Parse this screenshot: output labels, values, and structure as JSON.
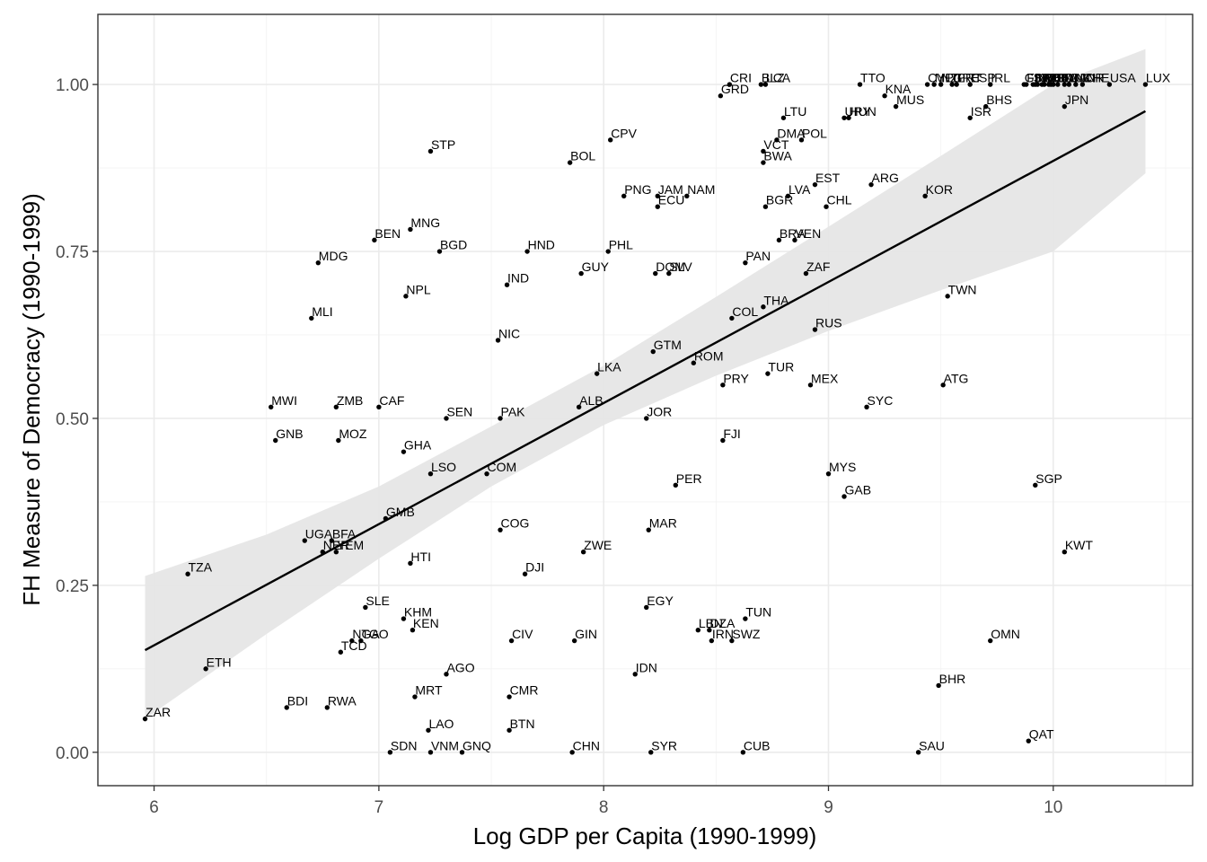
{
  "chart_data": {
    "type": "scatter",
    "xlabel": "Log GDP per Capita (1990-1999)",
    "ylabel": "FH Measure of Democracy (1990-1999)",
    "xlim": [
      5.75,
      10.62
    ],
    "ylim": [
      -0.05,
      1.105
    ],
    "x_ticks": [
      6,
      7,
      8,
      9,
      10
    ],
    "y_ticks": [
      0.0,
      0.25,
      0.5,
      0.75,
      1.0
    ],
    "x_tick_labels": [
      "6",
      "7",
      "8",
      "9",
      "10"
    ],
    "y_tick_labels": [
      "0.00",
      "0.25",
      "0.50",
      "0.75",
      "1.00"
    ],
    "grid": true,
    "point_color": "#000000",
    "panel_border_color": "#333333",
    "fit": {
      "method": "linear",
      "x": [
        5.96,
        10.41
      ],
      "y": [
        0.153,
        0.96
      ],
      "ribbon_x": [
        5.96,
        6.5,
        7.0,
        7.5,
        8.0,
        8.5,
        9.0,
        9.5,
        10.0,
        10.41
      ],
      "ribbon_lower": [
        0.05,
        0.177,
        0.29,
        0.398,
        0.49,
        0.564,
        0.631,
        0.692,
        0.75,
        0.867
      ],
      "ribbon_upper": [
        0.264,
        0.326,
        0.398,
        0.488,
        0.579,
        0.682,
        0.787,
        0.893,
        1.0,
        1.053
      ],
      "line_color": "#000000",
      "ribbon_color": "#e6e6e6"
    },
    "points": [
      {
        "label": "ZAR",
        "x": 5.96,
        "y": 0.05
      },
      {
        "label": "TZA",
        "x": 6.15,
        "y": 0.267
      },
      {
        "label": "ETH",
        "x": 6.23,
        "y": 0.125
      },
      {
        "label": "MWI",
        "x": 6.52,
        "y": 0.517
      },
      {
        "label": "GNB",
        "x": 6.54,
        "y": 0.467
      },
      {
        "label": "BDI",
        "x": 6.59,
        "y": 0.067
      },
      {
        "label": "UGA",
        "x": 6.67,
        "y": 0.317
      },
      {
        "label": "MLI",
        "x": 6.7,
        "y": 0.65
      },
      {
        "label": "MDG",
        "x": 6.73,
        "y": 0.733
      },
      {
        "label": "NER",
        "x": 6.75,
        "y": 0.3
      },
      {
        "label": "RWA",
        "x": 6.77,
        "y": 0.067
      },
      {
        "label": "BFA",
        "x": 6.79,
        "y": 0.317
      },
      {
        "label": "ZMB",
        "x": 6.81,
        "y": 0.517
      },
      {
        "label": "YEM",
        "x": 6.81,
        "y": 0.3
      },
      {
        "label": "MOZ",
        "x": 6.82,
        "y": 0.467
      },
      {
        "label": "TCD",
        "x": 6.83,
        "y": 0.15
      },
      {
        "label": "NGA",
        "x": 6.88,
        "y": 0.167
      },
      {
        "label": "TGO",
        "x": 6.92,
        "y": 0.167
      },
      {
        "label": "SLE",
        "x": 6.94,
        "y": 0.217
      },
      {
        "label": "BEN",
        "x": 6.98,
        "y": 0.767
      },
      {
        "label": "CAF",
        "x": 7.0,
        "y": 0.517
      },
      {
        "label": "GMB",
        "x": 7.03,
        "y": 0.35
      },
      {
        "label": "SDN",
        "x": 7.05,
        "y": 0.0
      },
      {
        "label": "KHM",
        "x": 7.11,
        "y": 0.2
      },
      {
        "label": "GHA",
        "x": 7.11,
        "y": 0.45
      },
      {
        "label": "NPL",
        "x": 7.12,
        "y": 0.683
      },
      {
        "label": "MNG",
        "x": 7.14,
        "y": 0.783
      },
      {
        "label": "HTI",
        "x": 7.14,
        "y": 0.283
      },
      {
        "label": "KEN",
        "x": 7.15,
        "y": 0.183
      },
      {
        "label": "MRT",
        "x": 7.16,
        "y": 0.083
      },
      {
        "label": "LAO",
        "x": 7.22,
        "y": 0.033
      },
      {
        "label": "STP",
        "x": 7.23,
        "y": 0.9
      },
      {
        "label": "LSO",
        "x": 7.23,
        "y": 0.417
      },
      {
        "label": "VNM",
        "x": 7.23,
        "y": 0.0
      },
      {
        "label": "BGD",
        "x": 7.27,
        "y": 0.75
      },
      {
        "label": "SEN",
        "x": 7.3,
        "y": 0.5
      },
      {
        "label": "AGO",
        "x": 7.3,
        "y": 0.117
      },
      {
        "label": "GNQ",
        "x": 7.37,
        "y": 0.0
      },
      {
        "label": "COM",
        "x": 7.48,
        "y": 0.417
      },
      {
        "label": "NIC",
        "x": 7.53,
        "y": 0.617
      },
      {
        "label": "PAK",
        "x": 7.54,
        "y": 0.5
      },
      {
        "label": "COG",
        "x": 7.54,
        "y": 0.333
      },
      {
        "label": "IND",
        "x": 7.57,
        "y": 0.7
      },
      {
        "label": "CMR",
        "x": 7.58,
        "y": 0.083
      },
      {
        "label": "BTN",
        "x": 7.58,
        "y": 0.033
      },
      {
        "label": "CIV",
        "x": 7.59,
        "y": 0.167
      },
      {
        "label": "DJI",
        "x": 7.65,
        "y": 0.267
      },
      {
        "label": "HND",
        "x": 7.66,
        "y": 0.75
      },
      {
        "label": "BOL",
        "x": 7.85,
        "y": 0.883
      },
      {
        "label": "CHN",
        "x": 7.86,
        "y": 0.0
      },
      {
        "label": "GIN",
        "x": 7.87,
        "y": 0.167
      },
      {
        "label": "ALB",
        "x": 7.89,
        "y": 0.517
      },
      {
        "label": "GUY",
        "x": 7.9,
        "y": 0.717
      },
      {
        "label": "ZWE",
        "x": 7.91,
        "y": 0.3
      },
      {
        "label": "LKA",
        "x": 7.97,
        "y": 0.567
      },
      {
        "label": "PHL",
        "x": 8.02,
        "y": 0.75
      },
      {
        "label": "CPV",
        "x": 8.03,
        "y": 0.917
      },
      {
        "label": "PNG",
        "x": 8.09,
        "y": 0.833
      },
      {
        "label": "IDN",
        "x": 8.14,
        "y": 0.117
      },
      {
        "label": "EGY",
        "x": 8.19,
        "y": 0.217
      },
      {
        "label": "JOR",
        "x": 8.19,
        "y": 0.5
      },
      {
        "label": "MAR",
        "x": 8.2,
        "y": 0.333
      },
      {
        "label": "SYR",
        "x": 8.21,
        "y": 0.0
      },
      {
        "label": "GTM",
        "x": 8.22,
        "y": 0.6
      },
      {
        "label": "DOM",
        "x": 8.23,
        "y": 0.717
      },
      {
        "label": "JAM",
        "x": 8.24,
        "y": 0.833
      },
      {
        "label": "ECU",
        "x": 8.24,
        "y": 0.817
      },
      {
        "label": "SLV",
        "x": 8.29,
        "y": 0.717
      },
      {
        "label": "PER",
        "x": 8.32,
        "y": 0.4
      },
      {
        "label": "NAM",
        "x": 8.37,
        "y": 0.833
      },
      {
        "label": "ROM",
        "x": 8.4,
        "y": 0.583
      },
      {
        "label": "LBN",
        "x": 8.42,
        "y": 0.183
      },
      {
        "label": "DZA",
        "x": 8.47,
        "y": 0.183
      },
      {
        "label": "IRN",
        "x": 8.48,
        "y": 0.167
      },
      {
        "label": "GRD",
        "x": 8.52,
        "y": 0.983
      },
      {
        "label": "PRY",
        "x": 8.53,
        "y": 0.55
      },
      {
        "label": "FJI",
        "x": 8.53,
        "y": 0.467
      },
      {
        "label": "CRI",
        "x": 8.56,
        "y": 1.0
      },
      {
        "label": "COL",
        "x": 8.57,
        "y": 0.65
      },
      {
        "label": "SWZ",
        "x": 8.57,
        "y": 0.167
      },
      {
        "label": "CUB",
        "x": 8.62,
        "y": 0.0
      },
      {
        "label": "TUN",
        "x": 8.63,
        "y": 0.2
      },
      {
        "label": "PAN",
        "x": 8.63,
        "y": 0.733
      },
      {
        "label": "BLZ",
        "x": 8.7,
        "y": 1.0
      },
      {
        "label": "LCA",
        "x": 8.72,
        "y": 1.0
      },
      {
        "label": "VCT",
        "x": 8.71,
        "y": 0.9
      },
      {
        "label": "BWA",
        "x": 8.71,
        "y": 0.883
      },
      {
        "label": "THA",
        "x": 8.71,
        "y": 0.667
      },
      {
        "label": "BGR",
        "x": 8.72,
        "y": 0.817
      },
      {
        "label": "TUR",
        "x": 8.73,
        "y": 0.567
      },
      {
        "label": "DMA",
        "x": 8.77,
        "y": 0.917
      },
      {
        "label": "BRA",
        "x": 8.78,
        "y": 0.767
      },
      {
        "label": "LTU",
        "x": 8.8,
        "y": 0.95
      },
      {
        "label": "LVA",
        "x": 8.82,
        "y": 0.833
      },
      {
        "label": "VEN",
        "x": 8.85,
        "y": 0.767
      },
      {
        "label": "POL",
        "x": 8.88,
        "y": 0.917
      },
      {
        "label": "ZAF",
        "x": 8.9,
        "y": 0.717
      },
      {
        "label": "MEX",
        "x": 8.92,
        "y": 0.55
      },
      {
        "label": "EST",
        "x": 8.94,
        "y": 0.85
      },
      {
        "label": "RUS",
        "x": 8.94,
        "y": 0.633
      },
      {
        "label": "CHL",
        "x": 8.99,
        "y": 0.817
      },
      {
        "label": "MYS",
        "x": 9.0,
        "y": 0.417
      },
      {
        "label": "GAB",
        "x": 9.07,
        "y": 0.383
      },
      {
        "label": "URY",
        "x": 9.07,
        "y": 0.95
      },
      {
        "label": "HUN",
        "x": 9.09,
        "y": 0.95
      },
      {
        "label": "TTO",
        "x": 9.14,
        "y": 1.0
      },
      {
        "label": "SYC",
        "x": 9.17,
        "y": 0.517
      },
      {
        "label": "ARG",
        "x": 9.19,
        "y": 0.85
      },
      {
        "label": "KNA",
        "x": 9.25,
        "y": 0.983
      },
      {
        "label": "MUS",
        "x": 9.3,
        "y": 0.967
      },
      {
        "label": "SAU",
        "x": 9.4,
        "y": 0.0
      },
      {
        "label": "KOR",
        "x": 9.43,
        "y": 0.833
      },
      {
        "label": "CYP",
        "x": 9.44,
        "y": 1.0
      },
      {
        "label": "MLT",
        "x": 9.47,
        "y": 1.0
      },
      {
        "label": "BHR",
        "x": 9.49,
        "y": 0.1
      },
      {
        "label": "NZL",
        "x": 9.5,
        "y": 1.0
      },
      {
        "label": "ATG",
        "x": 9.51,
        "y": 0.55
      },
      {
        "label": "TWN",
        "x": 9.53,
        "y": 0.683
      },
      {
        "label": "GRC",
        "x": 9.55,
        "y": 1.0
      },
      {
        "label": "PRT",
        "x": 9.57,
        "y": 1.0
      },
      {
        "label": "ESP",
        "x": 9.63,
        "y": 1.0
      },
      {
        "label": "ISR",
        "x": 9.63,
        "y": 0.95
      },
      {
        "label": "BHS",
        "x": 9.7,
        "y": 0.967
      },
      {
        "label": "OMN",
        "x": 9.72,
        "y": 0.167
      },
      {
        "label": "IRL",
        "x": 9.72,
        "y": 1.0
      },
      {
        "label": "GBR",
        "x": 9.87,
        "y": 1.0
      },
      {
        "label": "FIN",
        "x": 9.88,
        "y": 1.0
      },
      {
        "label": "QAT",
        "x": 9.89,
        "y": 0.017
      },
      {
        "label": "SWE",
        "x": 9.91,
        "y": 1.0
      },
      {
        "label": "NLD",
        "x": 9.92,
        "y": 1.0
      },
      {
        "label": "SGP",
        "x": 9.92,
        "y": 0.4
      },
      {
        "label": "AUS",
        "x": 9.93,
        "y": 1.0
      },
      {
        "label": "AUT",
        "x": 9.95,
        "y": 1.0
      },
      {
        "label": "BEL",
        "x": 9.96,
        "y": 1.0
      },
      {
        "label": "FRA",
        "x": 9.98,
        "y": 1.0
      },
      {
        "label": "DEU",
        "x": 9.99,
        "y": 1.0
      },
      {
        "label": "ISL",
        "x": 10.0,
        "y": 1.0
      },
      {
        "label": "ITA",
        "x": 10.02,
        "y": 1.0
      },
      {
        "label": "JPN",
        "x": 10.05,
        "y": 0.967
      },
      {
        "label": "KWT",
        "x": 10.05,
        "y": 0.3
      },
      {
        "label": "DNK",
        "x": 10.05,
        "y": 1.0
      },
      {
        "label": "CAN",
        "x": 10.07,
        "y": 1.0
      },
      {
        "label": "NOR",
        "x": 10.1,
        "y": 1.0
      },
      {
        "label": "CHE",
        "x": 10.13,
        "y": 1.0
      },
      {
        "label": "USA",
        "x": 10.25,
        "y": 1.0
      },
      {
        "label": "LUX",
        "x": 10.41,
        "y": 1.0
      }
    ]
  }
}
